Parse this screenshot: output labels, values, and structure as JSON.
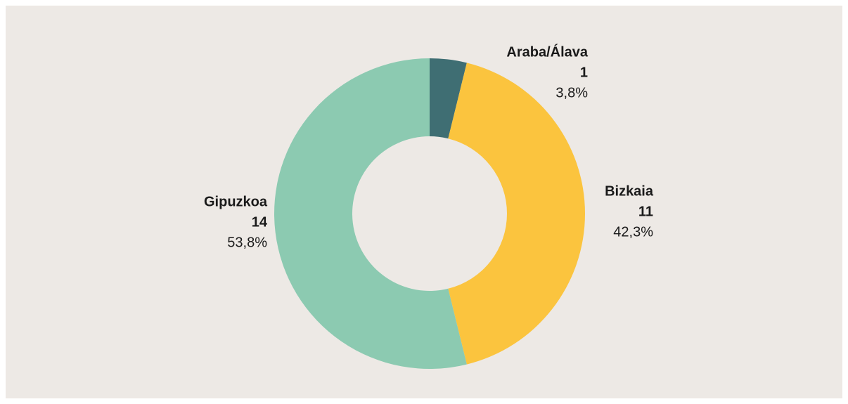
{
  "chart_data": {
    "type": "donut",
    "categories": [
      "Araba/Álava",
      "Bizkaia",
      "Gipuzkoa"
    ],
    "values": [
      1,
      11,
      14
    ],
    "percentages": [
      3.8,
      42.3,
      53.8
    ],
    "percentage_labels": [
      "3,8%",
      "42,3%",
      "53,8%"
    ],
    "colors": [
      "#3f6e73",
      "#fbc43e",
      "#8ccab1"
    ]
  }
}
